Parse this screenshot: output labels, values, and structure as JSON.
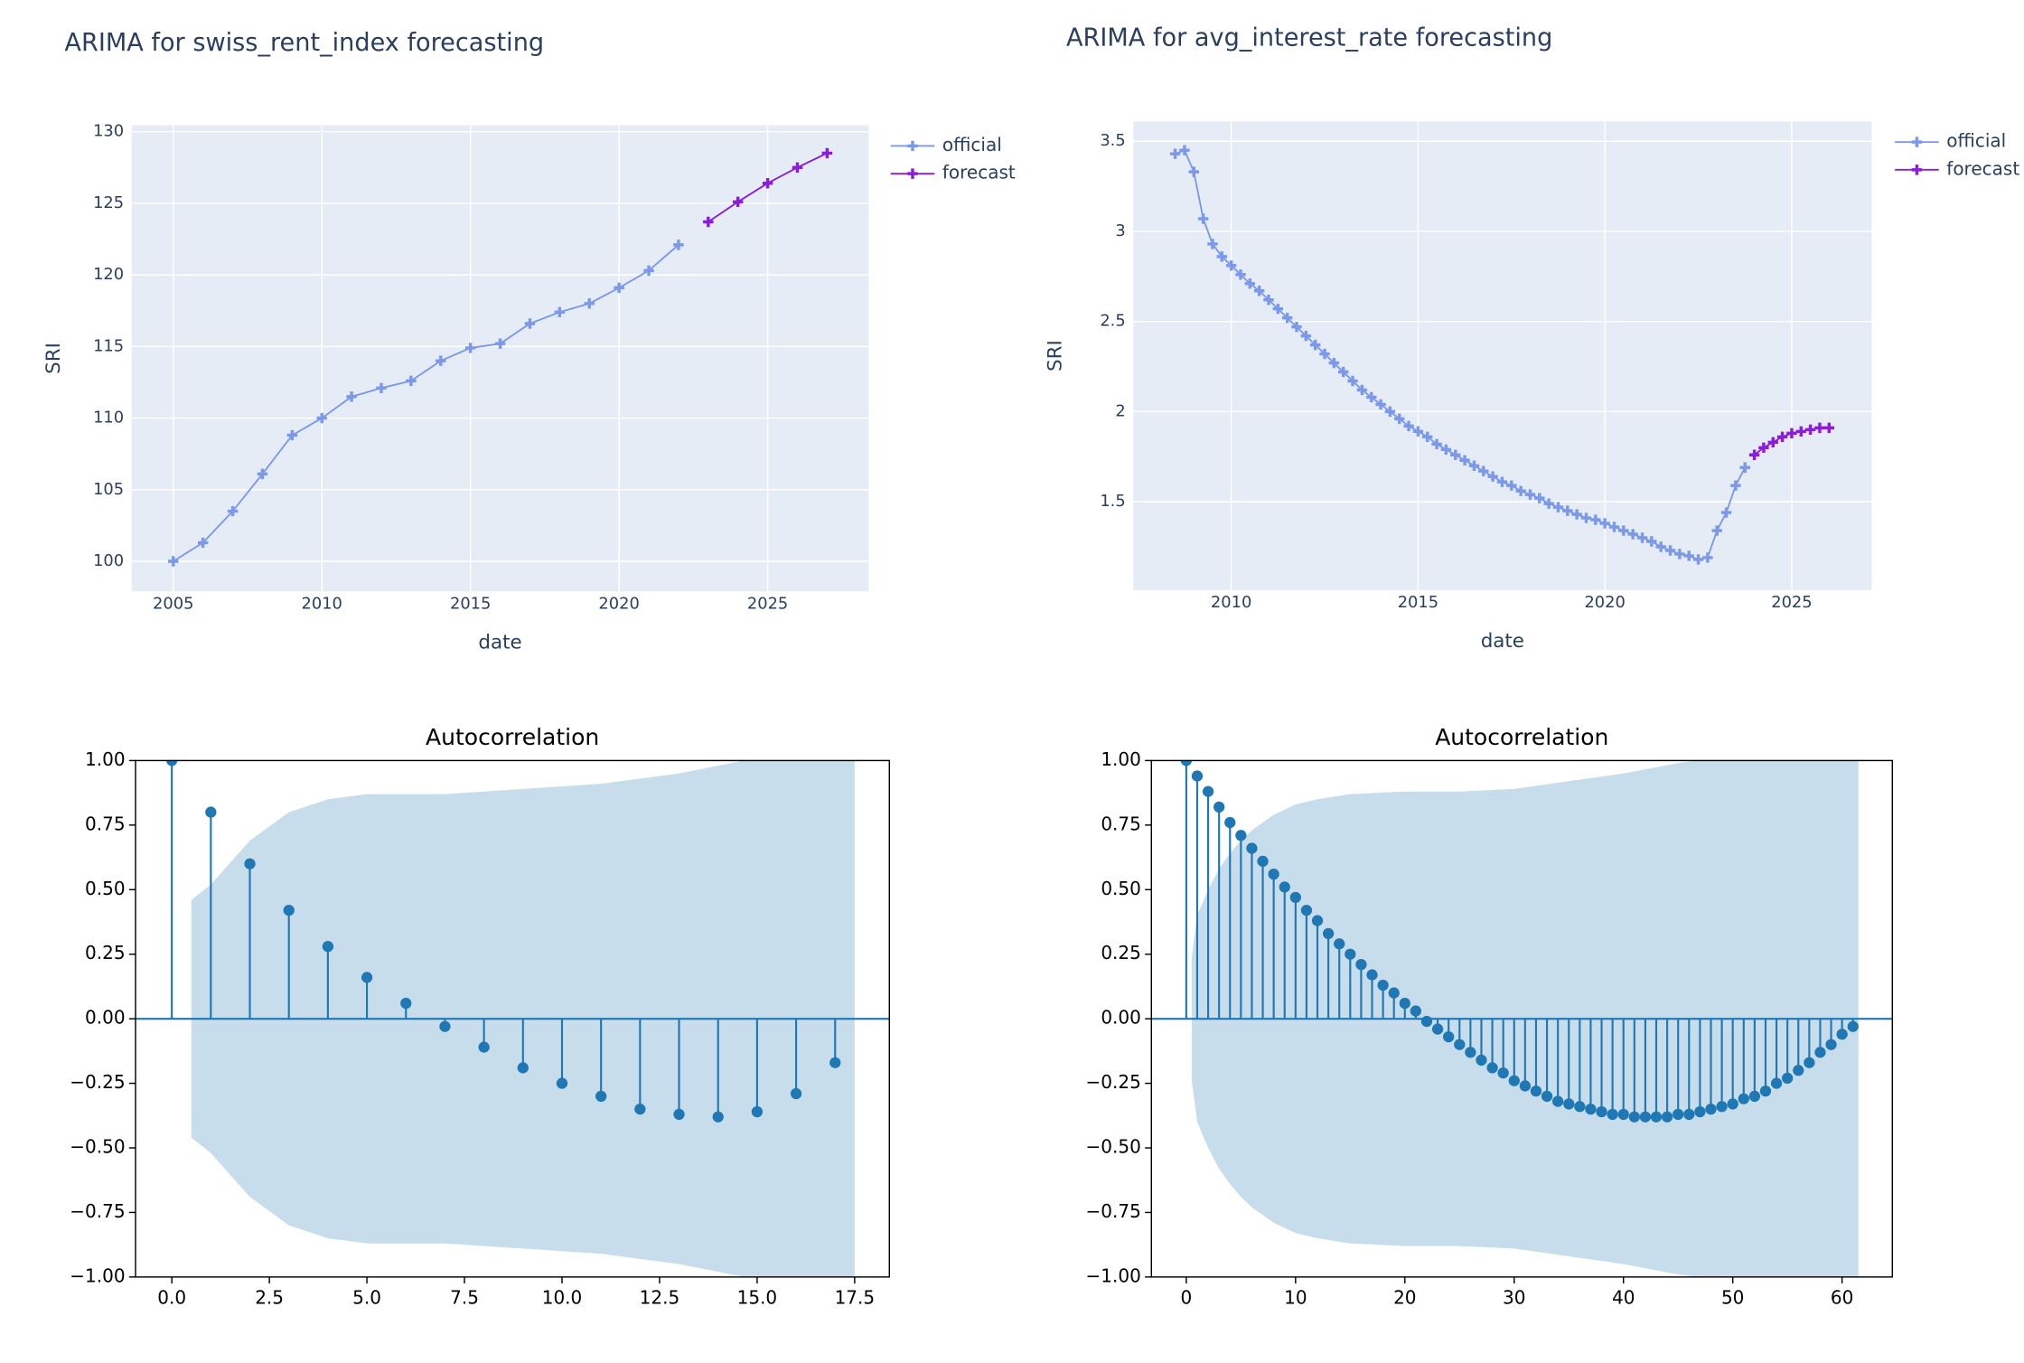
{
  "chart_data": [
    {
      "type": "line",
      "title": "ARIMA for swiss_rent_index forecasting",
      "x_label": "date",
      "y_label": "SRI",
      "grid": true,
      "legend": "right",
      "xlim": [
        2003.6,
        2028.4
      ],
      "xticks": [
        2005,
        2010,
        2015,
        2020,
        2025
      ],
      "ylim": [
        97.9,
        130.45
      ],
      "yticks": [
        100,
        105,
        110,
        115,
        120,
        125,
        130
      ],
      "series": [
        {
          "name": "official",
          "color": "#7b99e6",
          "x": [
            2005,
            2006,
            2007,
            2008,
            2009,
            2010,
            2011,
            2012,
            2013,
            2014,
            2015,
            2016,
            2017,
            2018,
            2019,
            2020,
            2021,
            2022
          ],
          "values": [
            100,
            101.3,
            103.5,
            106.1,
            108.8,
            110,
            111.5,
            112.1,
            112.6,
            114,
            114.9,
            115.2,
            116.6,
            117.4,
            118,
            119.1,
            120.3,
            122.1
          ]
        },
        {
          "name": "forecast",
          "color": "#8a1ed6",
          "x": [
            2023,
            2024,
            2025,
            2026,
            2027
          ],
          "values": [
            123.7,
            125.1,
            126.4,
            127.5,
            128.5
          ]
        }
      ]
    },
    {
      "type": "line",
      "title": "ARIMA for avg_interest_rate forecasting",
      "x_label": "date",
      "y_label": "SRI",
      "grid": true,
      "legend": "right",
      "xlim": [
        2007.38,
        2027.14
      ],
      "xticks": [
        2010,
        2015,
        2020,
        2025
      ],
      "ylim": [
        1.01,
        3.61
      ],
      "yticks": [
        1.5,
        2,
        2.5,
        3,
        3.5
      ],
      "series": [
        {
          "name": "official",
          "color": "#7b99e6",
          "x": [
            2008.5,
            2008.75,
            2009,
            2009.25,
            2009.5,
            2009.75,
            2010,
            2010.25,
            2010.5,
            2010.75,
            2011,
            2011.25,
            2011.5,
            2011.75,
            2012,
            2012.25,
            2012.5,
            2012.75,
            2013,
            2013.25,
            2013.5,
            2013.75,
            2014,
            2014.25,
            2014.5,
            2014.75,
            2015,
            2015.25,
            2015.5,
            2015.75,
            2016,
            2016.25,
            2016.5,
            2016.75,
            2017,
            2017.25,
            2017.5,
            2017.75,
            2018,
            2018.25,
            2018.5,
            2018.75,
            2019,
            2019.25,
            2019.5,
            2019.75,
            2020,
            2020.25,
            2020.5,
            2020.75,
            2021,
            2021.25,
            2021.5,
            2021.75,
            2022,
            2022.25,
            2022.5,
            2022.75,
            2023,
            2023.25,
            2023.5,
            2023.75
          ],
          "values": [
            3.43,
            3.45,
            3.33,
            3.07,
            2.93,
            2.86,
            2.81,
            2.76,
            2.71,
            2.67,
            2.62,
            2.57,
            2.52,
            2.47,
            2.42,
            2.37,
            2.32,
            2.27,
            2.22,
            2.17,
            2.12,
            2.08,
            2.04,
            2.0,
            1.96,
            1.92,
            1.89,
            1.86,
            1.82,
            1.79,
            1.76,
            1.73,
            1.7,
            1.67,
            1.64,
            1.61,
            1.59,
            1.56,
            1.54,
            1.52,
            1.49,
            1.47,
            1.45,
            1.43,
            1.41,
            1.4,
            1.38,
            1.36,
            1.34,
            1.32,
            1.3,
            1.28,
            1.25,
            1.23,
            1.21,
            1.2,
            1.18,
            1.19,
            1.34,
            1.44,
            1.59,
            1.69
          ]
        },
        {
          "name": "forecast",
          "color": "#8a1ed6",
          "x": [
            2024,
            2024.25,
            2024.5,
            2024.75,
            2025,
            2025.25,
            2025.5,
            2025.75,
            2026
          ],
          "values": [
            1.76,
            1.8,
            1.83,
            1.86,
            1.88,
            1.89,
            1.9,
            1.91,
            1.91
          ]
        }
      ]
    },
    {
      "type": "stem",
      "title": "Autocorrelation",
      "color": "#1f77b4",
      "xlim": [
        -0.93,
        18.39
      ],
      "xticks": [
        {
          "value": 0,
          "label": "0.0"
        },
        2.5,
        {
          "value": 5,
          "label": "5.0"
        },
        7.5,
        {
          "value": 10,
          "label": "10.0"
        },
        12.5,
        {
          "value": 15,
          "label": "15.0"
        },
        17.5
      ],
      "ylim": [
        -1,
        1
      ],
      "yticks": [
        {
          "value": 1,
          "label": "1.00"
        },
        0.75,
        {
          "value": 0.5,
          "label": "0.50"
        },
        0.25,
        {
          "value": 0,
          "label": "0.00"
        },
        {
          "value": -0.25,
          "label": "−0.25"
        },
        {
          "value": -0.5,
          "label": "−0.50"
        },
        {
          "value": -0.75,
          "label": "−0.75"
        },
        {
          "value": -1,
          "label": "−1.00"
        }
      ],
      "x": [
        0,
        1,
        2,
        3,
        4,
        5,
        6,
        7,
        8,
        9,
        10,
        11,
        12,
        13,
        14,
        15,
        16,
        17
      ],
      "values": [
        1,
        0.8,
        0.6,
        0.42,
        0.28,
        0.16,
        0.06,
        -0.03,
        -0.11,
        -0.19,
        -0.25,
        -0.3,
        -0.35,
        -0.37,
        -0.38,
        -0.36,
        -0.29,
        -0.17
      ],
      "band": {
        "x": [
          0.5,
          1,
          2,
          3,
          4,
          5,
          6,
          7,
          8,
          9,
          10,
          11,
          12,
          13,
          14,
          15,
          16,
          17,
          17.5
        ],
        "upper": [
          0.46,
          0.52,
          0.69,
          0.8,
          0.85,
          0.87,
          0.87,
          0.87,
          0.88,
          0.89,
          0.9,
          0.91,
          0.93,
          0.95,
          0.98,
          1.01,
          1.04,
          1.06,
          1.06
        ],
        "lower": [
          -0.46,
          -0.52,
          -0.69,
          -0.8,
          -0.85,
          -0.87,
          -0.87,
          -0.87,
          -0.88,
          -0.89,
          -0.9,
          -0.91,
          -0.93,
          -0.95,
          -0.98,
          -1.01,
          -1.04,
          -1.06,
          -1.06
        ]
      }
    },
    {
      "type": "stem",
      "title": "Autocorrelation",
      "color": "#1f77b4",
      "xlim": [
        -3.19,
        64.6
      ],
      "xticks": [
        0,
        10,
        20,
        30,
        40,
        50,
        60
      ],
      "ylim": [
        -1,
        1
      ],
      "yticks": [
        {
          "value": 1,
          "label": "1.00"
        },
        0.75,
        {
          "value": 0.5,
          "label": "0.50"
        },
        0.25,
        {
          "value": 0,
          "label": "0.00"
        },
        {
          "value": -0.25,
          "label": "−0.25"
        },
        {
          "value": -0.5,
          "label": "−0.50"
        },
        {
          "value": -0.75,
          "label": "−0.75"
        },
        {
          "value": -1,
          "label": "−1.00"
        }
      ],
      "x": [
        0,
        1,
        2,
        3,
        4,
        5,
        6,
        7,
        8,
        9,
        10,
        11,
        12,
        13,
        14,
        15,
        16,
        17,
        18,
        19,
        20,
        21,
        22,
        23,
        24,
        25,
        26,
        27,
        28,
        29,
        30,
        31,
        32,
        33,
        34,
        35,
        36,
        37,
        38,
        39,
        40,
        41,
        42,
        43,
        44,
        45,
        46,
        47,
        48,
        49,
        50,
        51,
        52,
        53,
        54,
        55,
        56,
        57,
        58,
        59,
        60,
        61
      ],
      "values": [
        1,
        0.94,
        0.88,
        0.82,
        0.76,
        0.71,
        0.66,
        0.61,
        0.56,
        0.51,
        0.47,
        0.42,
        0.38,
        0.33,
        0.29,
        0.25,
        0.21,
        0.17,
        0.13,
        0.1,
        0.06,
        0.03,
        -0.01,
        -0.04,
        -0.07,
        -0.1,
        -0.13,
        -0.16,
        -0.19,
        -0.21,
        -0.24,
        -0.26,
        -0.28,
        -0.3,
        -0.32,
        -0.33,
        -0.34,
        -0.35,
        -0.36,
        -0.37,
        -0.37,
        -0.38,
        -0.38,
        -0.38,
        -0.38,
        -0.37,
        -0.37,
        -0.36,
        -0.35,
        -0.34,
        -0.33,
        -0.31,
        -0.3,
        -0.28,
        -0.25,
        -0.23,
        -0.2,
        -0.17,
        -0.13,
        -0.1,
        -0.06,
        -0.03
      ],
      "band": {
        "x": [
          0.5,
          1,
          2,
          3,
          4,
          5,
          6,
          8,
          10,
          12,
          15,
          20,
          25,
          30,
          35,
          40,
          45,
          50,
          55,
          61.5
        ],
        "upper": [
          0.24,
          0.4,
          0.5,
          0.58,
          0.64,
          0.69,
          0.73,
          0.79,
          0.83,
          0.85,
          0.87,
          0.88,
          0.88,
          0.89,
          0.92,
          0.95,
          0.99,
          1.02,
          1.04,
          1.05
        ],
        "lower": [
          -0.24,
          -0.4,
          -0.5,
          -0.58,
          -0.64,
          -0.69,
          -0.73,
          -0.79,
          -0.83,
          -0.85,
          -0.87,
          -0.88,
          -0.88,
          -0.89,
          -0.92,
          -0.95,
          -0.99,
          -1.02,
          -1.04,
          -1.05
        ]
      }
    }
  ]
}
